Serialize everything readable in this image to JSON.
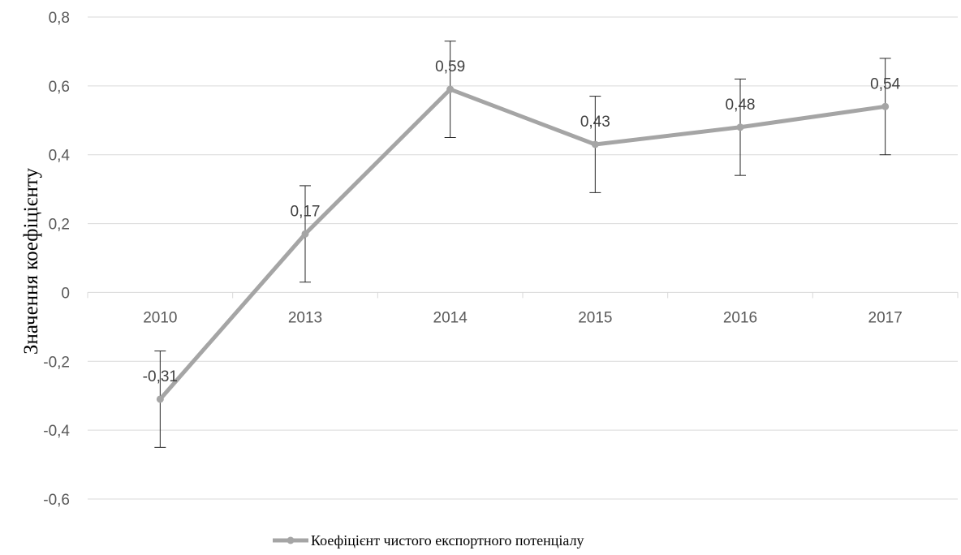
{
  "chart_data": {
    "type": "line",
    "categories": [
      "2010",
      "2013",
      "2014",
      "2015",
      "2016",
      "2017"
    ],
    "series": [
      {
        "name": "Коефіцієнт  чистого експортного потенціалу",
        "values": [
          -0.31,
          0.17,
          0.59,
          0.43,
          0.48,
          0.54
        ],
        "data_labels": [
          "-0,31",
          "0,17",
          "0,59",
          "0,43",
          "0,48",
          "0,54"
        ],
        "error": 0.14
      }
    ],
    "title": "",
    "xlabel": "",
    "ylabel": "Значення коефіцієнту",
    "ylim": [
      -0.6,
      0.8
    ],
    "y_ticks": [
      0.8,
      0.6,
      0.4,
      0.2,
      0,
      -0.2,
      -0.4,
      -0.6
    ],
    "y_tick_labels": [
      "0,8",
      "0,6",
      "0,4",
      "0,2",
      "0",
      "-0,2",
      "-0,4",
      "-0,6"
    ],
    "grid": true,
    "legend_position": "bottom",
    "colors": {
      "line": "#a5a5a5",
      "grid": "#d9d9d9",
      "error_bar": "#262626",
      "text": "#595959"
    }
  }
}
